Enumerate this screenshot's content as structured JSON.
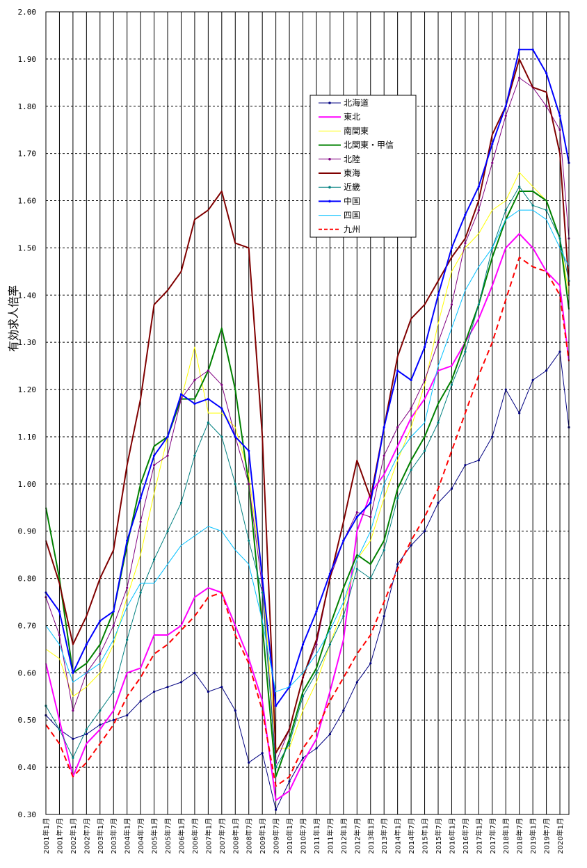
{
  "chart_data": {
    "type": "line",
    "title": "",
    "ylabel": "有効求人倍率",
    "xlabel": "",
    "ylim": [
      0.3,
      2.0
    ],
    "y_ticks": [
      "0.30",
      "0.40",
      "0.50",
      "0.60",
      "0.70",
      "0.80",
      "0.90",
      "1.00",
      "1.10",
      "1.20",
      "1.30",
      "1.40",
      "1.50",
      "1.60",
      "1.70",
      "1.80",
      "1.90",
      "2.00"
    ],
    "x_tick_labels": [
      "2001年1月",
      "2001年7月",
      "2002年1月",
      "2002年7月",
      "2003年1月",
      "2003年7月",
      "2004年1月",
      "2004年7月",
      "2005年1月",
      "2005年7月",
      "2006年1月",
      "2006年7月",
      "2007年1月",
      "2007年7月",
      "2008年1月",
      "2008年7月",
      "2009年1月",
      "2009年7月",
      "2010年1月",
      "2010年7月",
      "2011年1月",
      "2011年7月",
      "2012年1月",
      "2012年7月",
      "2013年1月",
      "2013年7月",
      "2014年1月",
      "2014年7月",
      "2015年1月",
      "2015年7月",
      "2016年1月",
      "2016年7月",
      "2017年1月",
      "2017年7月",
      "2018年1月",
      "2018年7月",
      "2019年1月",
      "2019年7月",
      "2020年1月"
    ],
    "x_start": "2001-01",
    "x_end": "2020-05",
    "grid": true,
    "legend_position": "top-center",
    "x": [
      "2001-01",
      "2001-07",
      "2002-01",
      "2002-07",
      "2003-01",
      "2003-07",
      "2004-01",
      "2004-07",
      "2005-01",
      "2005-07",
      "2006-01",
      "2006-07",
      "2007-01",
      "2007-07",
      "2008-01",
      "2008-07",
      "2009-01",
      "2009-07",
      "2010-01",
      "2010-07",
      "2011-01",
      "2011-07",
      "2012-01",
      "2012-07",
      "2013-01",
      "2013-07",
      "2014-01",
      "2014-07",
      "2015-01",
      "2015-07",
      "2016-01",
      "2016-07",
      "2017-01",
      "2017-07",
      "2018-01",
      "2018-07",
      "2019-01",
      "2019-07",
      "2020-01",
      "2020-05"
    ],
    "series": [
      {
        "name": "北海道",
        "color": "#000080",
        "width": 1,
        "dash": "",
        "marker": "dot",
        "values": [
          0.51,
          0.48,
          0.46,
          0.47,
          0.49,
          0.5,
          0.51,
          0.54,
          0.56,
          0.57,
          0.58,
          0.6,
          0.56,
          0.57,
          0.52,
          0.41,
          0.43,
          0.31,
          0.37,
          0.42,
          0.44,
          0.47,
          0.52,
          0.58,
          0.62,
          0.72,
          0.83,
          0.87,
          0.9,
          0.96,
          0.99,
          1.04,
          1.05,
          1.1,
          1.2,
          1.15,
          1.22,
          1.24,
          1.28,
          1.12
        ]
      },
      {
        "name": "東北",
        "color": "#ff00ff",
        "width": 2,
        "dash": "",
        "marker": "",
        "values": [
          0.62,
          0.5,
          0.38,
          0.45,
          0.48,
          0.52,
          0.6,
          0.61,
          0.68,
          0.68,
          0.7,
          0.76,
          0.78,
          0.77,
          0.7,
          0.63,
          0.54,
          0.33,
          0.35,
          0.41,
          0.46,
          0.56,
          0.67,
          0.9,
          0.98,
          1.02,
          1.08,
          1.14,
          1.18,
          1.24,
          1.25,
          1.3,
          1.35,
          1.42,
          1.5,
          1.53,
          1.5,
          1.45,
          1.42,
          1.26
        ]
      },
      {
        "name": "南関東",
        "color": "#ffff00",
        "width": 1,
        "dash": "",
        "marker": "",
        "values": [
          0.65,
          0.63,
          0.55,
          0.57,
          0.6,
          0.66,
          0.76,
          0.85,
          0.98,
          1.1,
          1.18,
          1.29,
          1.15,
          1.15,
          1.12,
          1.02,
          0.8,
          0.44,
          0.44,
          0.52,
          0.58,
          0.66,
          0.74,
          0.84,
          0.88,
          0.97,
          1.05,
          1.12,
          1.21,
          1.34,
          1.45,
          1.5,
          1.53,
          1.58,
          1.6,
          1.66,
          1.63,
          1.6,
          1.52,
          1.4
        ]
      },
      {
        "name": "北関東・甲信",
        "color": "#008000",
        "width": 2,
        "dash": "",
        "marker": "",
        "values": [
          0.95,
          0.8,
          0.6,
          0.62,
          0.66,
          0.73,
          0.87,
          1.0,
          1.08,
          1.1,
          1.18,
          1.18,
          1.24,
          1.33,
          1.2,
          1.0,
          0.7,
          0.38,
          0.46,
          0.56,
          0.61,
          0.7,
          0.78,
          0.85,
          0.83,
          0.88,
          0.99,
          1.05,
          1.1,
          1.17,
          1.22,
          1.3,
          1.38,
          1.48,
          1.56,
          1.62,
          1.62,
          1.6,
          1.52,
          1.37
        ]
      },
      {
        "name": "北陸",
        "color": "#800080",
        "width": 1,
        "dash": "",
        "marker": "dot",
        "values": [
          0.76,
          0.68,
          0.52,
          0.6,
          0.64,
          0.7,
          0.78,
          0.92,
          1.04,
          1.06,
          1.18,
          1.22,
          1.24,
          1.21,
          1.1,
          1.0,
          0.78,
          0.41,
          0.48,
          0.59,
          0.66,
          0.8,
          0.88,
          0.94,
          0.93,
          1.06,
          1.12,
          1.16,
          1.22,
          1.3,
          1.38,
          1.51,
          1.58,
          1.68,
          1.78,
          1.86,
          1.84,
          1.8,
          1.75,
          1.52
        ]
      },
      {
        "name": "東海",
        "color": "#800000",
        "width": 2,
        "dash": "",
        "marker": "",
        "values": [
          0.88,
          0.79,
          0.66,
          0.72,
          0.8,
          0.86,
          1.04,
          1.18,
          1.38,
          1.41,
          1.45,
          1.56,
          1.58,
          1.62,
          1.51,
          1.5,
          1.1,
          0.43,
          0.48,
          0.59,
          0.67,
          0.8,
          0.92,
          1.05,
          0.97,
          1.12,
          1.27,
          1.35,
          1.38,
          1.43,
          1.48,
          1.52,
          1.6,
          1.74,
          1.8,
          1.9,
          1.84,
          1.83,
          1.7,
          1.42
        ]
      },
      {
        "name": "近畿",
        "color": "#008080",
        "width": 1,
        "dash": "",
        "marker": "dot",
        "values": [
          0.53,
          0.48,
          0.42,
          0.48,
          0.52,
          0.56,
          0.67,
          0.77,
          0.84,
          0.9,
          0.96,
          1.06,
          1.13,
          1.1,
          1.0,
          0.88,
          0.77,
          0.4,
          0.45,
          0.55,
          0.6,
          0.66,
          0.72,
          0.82,
          0.8,
          0.86,
          0.97,
          1.03,
          1.07,
          1.13,
          1.21,
          1.28,
          1.38,
          1.5,
          1.58,
          1.63,
          1.59,
          1.58,
          1.52,
          1.43
        ]
      },
      {
        "name": "中国",
        "color": "#0000ff",
        "width": 2,
        "dash": "",
        "marker": "dot",
        "values": [
          0.77,
          0.73,
          0.6,
          0.66,
          0.71,
          0.73,
          0.88,
          0.97,
          1.06,
          1.1,
          1.19,
          1.17,
          1.18,
          1.16,
          1.1,
          1.07,
          0.8,
          0.53,
          0.57,
          0.66,
          0.73,
          0.81,
          0.88,
          0.93,
          0.96,
          1.12,
          1.24,
          1.22,
          1.29,
          1.4,
          1.5,
          1.57,
          1.63,
          1.72,
          1.8,
          1.92,
          1.92,
          1.87,
          1.78,
          1.68
        ]
      },
      {
        "name": "四国",
        "color": "#00c0ff",
        "width": 1,
        "dash": "",
        "marker": "",
        "values": [
          0.7,
          0.66,
          0.58,
          0.6,
          0.62,
          0.67,
          0.74,
          0.79,
          0.79,
          0.83,
          0.87,
          0.89,
          0.91,
          0.9,
          0.86,
          0.83,
          0.71,
          0.56,
          0.57,
          0.6,
          0.64,
          0.69,
          0.75,
          0.84,
          0.9,
          1.0,
          1.06,
          1.1,
          1.13,
          1.25,
          1.33,
          1.41,
          1.46,
          1.5,
          1.56,
          1.58,
          1.58,
          1.56,
          1.5,
          1.46
        ]
      },
      {
        "name": "九州",
        "color": "#ff0000",
        "width": 2,
        "dash": "8,5",
        "marker": "",
        "values": [
          0.49,
          0.45,
          0.38,
          0.41,
          0.45,
          0.49,
          0.55,
          0.59,
          0.64,
          0.66,
          0.69,
          0.72,
          0.76,
          0.77,
          0.68,
          0.62,
          0.52,
          0.36,
          0.38,
          0.44,
          0.48,
          0.54,
          0.59,
          0.64,
          0.68,
          0.75,
          0.82,
          0.88,
          0.93,
          0.99,
          1.07,
          1.15,
          1.23,
          1.3,
          1.39,
          1.48,
          1.46,
          1.45,
          1.4,
          1.26
        ]
      }
    ]
  }
}
